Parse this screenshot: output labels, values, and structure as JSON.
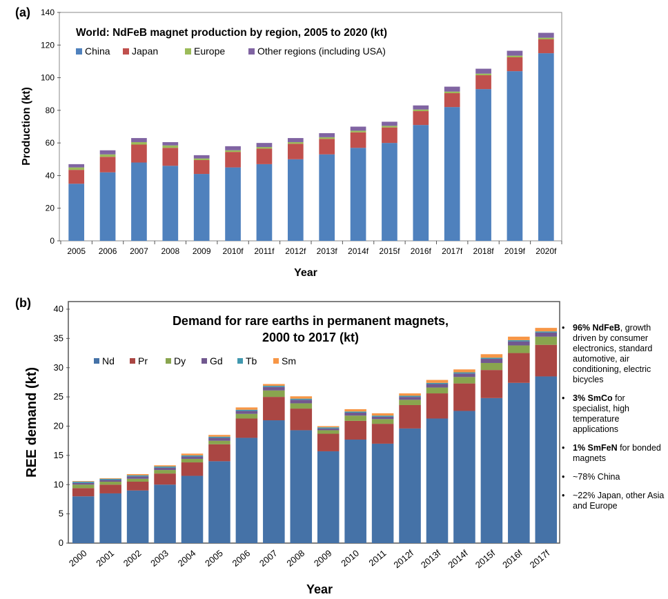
{
  "chart_data": [
    {
      "type": "bar",
      "stacked": true,
      "panel_label": "(a)",
      "title": "World: NdFeB magnet production by region, 2005 to 2020 (kt)",
      "xlabel": "Year",
      "ylabel": "Production (kt)",
      "ylim": [
        0,
        140
      ],
      "yticks": [
        0,
        20,
        40,
        60,
        80,
        100,
        120,
        140
      ],
      "grid": false,
      "legend_position": "top-left",
      "categories": [
        "2005",
        "2006",
        "2007",
        "2008",
        "2009",
        "2010f",
        "2011f",
        "2012f",
        "2013f",
        "2014f",
        "2015f",
        "2016f",
        "2017f",
        "2018f",
        "2019f",
        "2020f"
      ],
      "series": [
        {
          "name": "China",
          "color": "#4f81bd",
          "values": [
            35,
            42,
            48,
            46,
            41,
            45,
            47,
            50,
            53,
            57,
            60,
            71,
            82,
            93,
            104,
            115
          ]
        },
        {
          "name": "Japan",
          "color": "#c0504d",
          "values": [
            8.5,
            9.5,
            11,
            11,
            8.5,
            9.5,
            9.5,
            9.5,
            9.5,
            9.5,
            9.5,
            8.5,
            8.5,
            8.5,
            8.5,
            8.5
          ]
        },
        {
          "name": "Europe",
          "color": "#9bbb59",
          "values": [
            1.5,
            1.5,
            1.5,
            1.5,
            1,
            1,
            1,
            1,
            1,
            1,
            1,
            1,
            1,
            1,
            1,
            1
          ]
        },
        {
          "name": "Other regions (including USA)",
          "color": "#8064a2",
          "values": [
            2,
            2.5,
            2.5,
            2,
            2,
            2.5,
            2.5,
            2.5,
            2.5,
            2.5,
            2.5,
            2.5,
            3,
            3,
            3,
            3
          ]
        }
      ]
    },
    {
      "type": "bar",
      "stacked": true,
      "panel_label": "(b)",
      "title_lines": [
        "Demand for rare earths in permanent magnets,",
        "2000 to 2017 (kt)"
      ],
      "xlabel": "Year",
      "ylabel": "REE demand (kt)",
      "ylim": [
        0,
        40
      ],
      "yticks": [
        0,
        5,
        10,
        15,
        20,
        25,
        30,
        35,
        40
      ],
      "grid": false,
      "legend_position": "top-left",
      "categories": [
        "2000",
        "2001",
        "2002",
        "2003",
        "2004",
        "2005",
        "2006",
        "2007",
        "2008",
        "2009",
        "2010",
        "2011",
        "2012f",
        "2013f",
        "2014f",
        "2015f",
        "2016f",
        "2017f"
      ],
      "series": [
        {
          "name": "Nd",
          "color": "#4572a7",
          "values": [
            8,
            8.5,
            9,
            10,
            11.5,
            14,
            18,
            21,
            19.3,
            15.7,
            17.7,
            17,
            19.6,
            21.3,
            22.6,
            24.8,
            27.4,
            28.5
          ]
        },
        {
          "name": "Pr",
          "color": "#aa4643",
          "values": [
            1.4,
            1.5,
            1.5,
            1.9,
            2.3,
            2.9,
            3.3,
            4,
            3.7,
            3,
            3.2,
            3.4,
            4,
            4.3,
            4.7,
            4.8,
            5.1,
            5.4
          ]
        },
        {
          "name": "Dy",
          "color": "#89a54e",
          "values": [
            0.6,
            0.5,
            0.5,
            0.6,
            0.6,
            0.6,
            0.8,
            1.1,
            0.9,
            0.6,
            0.9,
            0.8,
            0.9,
            1,
            1.1,
            1.2,
            1.3,
            1.4
          ]
        },
        {
          "name": "Gd",
          "color": "#71588f",
          "values": [
            0.3,
            0.3,
            0.4,
            0.4,
            0.4,
            0.5,
            0.5,
            0.6,
            0.6,
            0.3,
            0.5,
            0.4,
            0.5,
            0.6,
            0.6,
            0.7,
            0.7,
            0.7
          ]
        },
        {
          "name": "Tb",
          "color": "#4198af",
          "values": [
            0.2,
            0.2,
            0.2,
            0.2,
            0.2,
            0.2,
            0.2,
            0.2,
            0.2,
            0.2,
            0.2,
            0.2,
            0.2,
            0.2,
            0.2,
            0.2,
            0.2,
            0.2
          ]
        },
        {
          "name": "Sm",
          "color": "#f79646",
          "values": [
            0.1,
            0.1,
            0.2,
            0.2,
            0.3,
            0.3,
            0.4,
            0.3,
            0.4,
            0.2,
            0.4,
            0.4,
            0.4,
            0.5,
            0.5,
            0.6,
            0.6,
            0.6
          ]
        }
      ]
    }
  ],
  "side_notes": [
    {
      "bold": "96% NdFeB",
      "text": ", growth driven by consumer electronics, standard automotive, air conditioning, electric bicycles"
    },
    {
      "bold": "3% SmCo",
      "text": " for specialist, high temperature applications"
    },
    {
      "bold": "1% SmFeN",
      "text": " for bonded magnets"
    },
    {
      "bold": "",
      "text": "~78% China"
    },
    {
      "bold": "",
      "text": "~22% Japan, other Asia and Europe"
    }
  ],
  "bullet_char": "•"
}
